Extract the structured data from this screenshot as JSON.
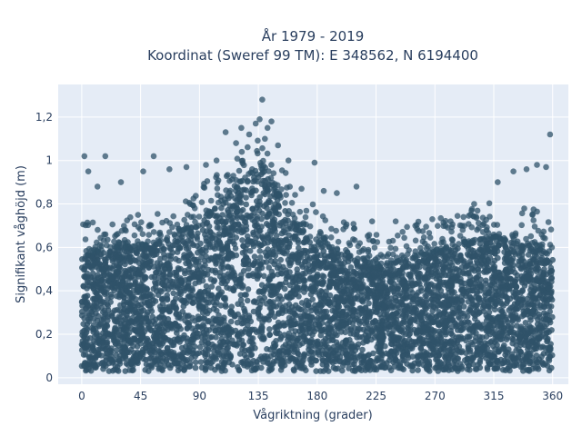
{
  "chart_data": {
    "type": "scatter",
    "title": [
      "År 1979 - 2019",
      "Koordinat (Sweref 99 TM): E 348562, N 6194400"
    ],
    "xlabel": "Vågriktning (grader)",
    "ylabel": "Signifikant våghöjd (m)",
    "xlim": [
      -18,
      372
    ],
    "ylim": [
      -0.03,
      1.35
    ],
    "xticks": [
      0,
      45,
      90,
      135,
      180,
      225,
      270,
      315,
      360
    ],
    "xtick_labels": [
      "0",
      "45",
      "90",
      "135",
      "180",
      "225",
      "270",
      "315",
      "360"
    ],
    "yticks": [
      0,
      0.2,
      0.4,
      0.6,
      0.8,
      1.0,
      1.2
    ],
    "ytick_labels": [
      "0",
      "0,2",
      "0,4",
      "0,6",
      "0,8",
      "1",
      "1,2"
    ],
    "grid": true,
    "marker_color": "#2f5369",
    "plot_background": "#e5ecf6",
    "envelope": {
      "note": "upper edge of the dense point cloud by direction",
      "x": [
        0,
        20,
        45,
        70,
        90,
        110,
        125,
        140,
        150,
        165,
        180,
        200,
        225,
        250,
        270,
        290,
        315,
        330,
        345,
        360
      ],
      "y": [
        0.55,
        0.6,
        0.6,
        0.65,
        0.72,
        0.82,
        0.9,
        0.95,
        0.85,
        0.7,
        0.62,
        0.58,
        0.52,
        0.55,
        0.58,
        0.62,
        0.65,
        0.62,
        0.62,
        0.55
      ],
      "y_min": 0.03
    },
    "outliers": {
      "x": [
        2,
        5,
        12,
        18,
        30,
        47,
        55,
        67,
        80,
        95,
        103,
        110,
        118,
        122,
        128,
        133,
        136,
        138,
        140,
        142,
        145,
        150,
        158,
        168,
        178,
        185,
        195,
        210,
        222,
        240,
        255,
        268,
        282,
        300,
        318,
        330,
        340,
        348,
        355,
        358
      ],
      "y": [
        1.02,
        0.95,
        0.88,
        1.02,
        0.9,
        0.95,
        1.02,
        0.96,
        0.97,
        0.98,
        1.0,
        1.13,
        1.08,
        1.15,
        1.12,
        1.17,
        1.19,
        1.28,
        1.1,
        1.15,
        1.18,
        1.07,
        1.0,
        0.87,
        0.99,
        0.86,
        0.85,
        0.88,
        0.72,
        0.72,
        0.7,
        0.73,
        0.72,
        0.8,
        0.9,
        0.95,
        0.96,
        0.98,
        0.97,
        1.12
      ]
    }
  }
}
